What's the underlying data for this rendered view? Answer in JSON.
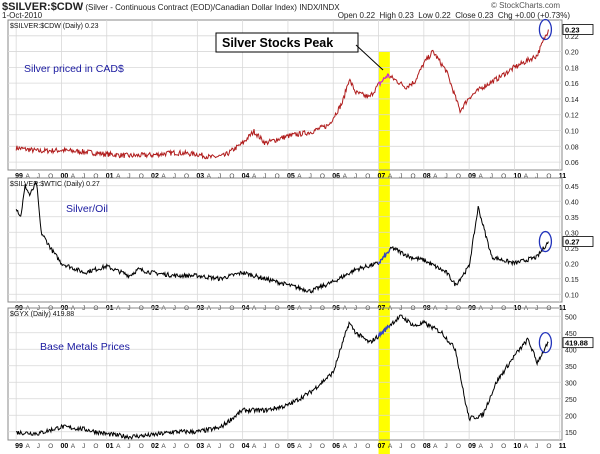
{
  "header": {
    "symbol": "$SILVER:$CDW",
    "description": "(Silver - Continuous Contract (EOD)/Canadian Dollar Index)  INDX/INDX",
    "date": "1-Oct-2010",
    "open_label": "Open",
    "open": "0.22",
    "high_label": "High",
    "high": "0.23",
    "low_label": "Low",
    "low": "0.22",
    "close_label": "Close",
    "close": "0.23",
    "chg_label": "Chg",
    "chg": "+0.00 (+0.73%)",
    "brand": "© StockCharts.com"
  },
  "colors": {
    "panel1_line": "#b01c1c",
    "panel_line": "#000000",
    "highlight_band": "#ffff00",
    "highlight_series": "#3344cc",
    "annotation_text": "#1a1aa0",
    "circle": "#2233bb",
    "grid": "#d8d8d8"
  },
  "chart_data": [
    {
      "type": "line",
      "title": "$SILVER:$CDW (Daily) 0.23",
      "annotation": "Silver priced in CAD$",
      "callout": "Silver Stocks Peak",
      "last_value": "0.23",
      "ylim": [
        0.05,
        0.24
      ],
      "yticks": [
        0.06,
        0.08,
        0.1,
        0.12,
        0.14,
        0.16,
        0.18,
        0.2,
        0.22
      ],
      "x": [
        1999.0,
        1999.5,
        2000.0,
        2000.5,
        2001.0,
        2001.5,
        2002.0,
        2002.5,
        2003.0,
        2003.3,
        2003.6,
        2004.0,
        2004.25,
        2004.5,
        2005.0,
        2005.5,
        2005.9,
        2006.2,
        2006.35,
        2006.5,
        2006.8,
        2007.0,
        2007.2,
        2007.4,
        2007.6,
        2007.8,
        2008.0,
        2008.2,
        2008.5,
        2008.8,
        2009.0,
        2009.3,
        2009.6,
        2010.0,
        2010.5,
        2010.75
      ],
      "values": [
        0.078,
        0.074,
        0.075,
        0.073,
        0.07,
        0.068,
        0.069,
        0.072,
        0.07,
        0.066,
        0.068,
        0.084,
        0.099,
        0.084,
        0.093,
        0.098,
        0.107,
        0.135,
        0.165,
        0.148,
        0.142,
        0.158,
        0.17,
        0.163,
        0.155,
        0.162,
        0.185,
        0.2,
        0.175,
        0.125,
        0.142,
        0.155,
        0.165,
        0.18,
        0.195,
        0.228
      ]
    },
    {
      "type": "line",
      "title": "$SILVER:$WTIC (Daily) 0.27",
      "annotation": "Silver/Oil",
      "last_value": "0.27",
      "ylim": [
        0.075,
        0.475
      ],
      "yticks": [
        0.1,
        0.15,
        0.2,
        0.25,
        0.3,
        0.35,
        0.4,
        0.45
      ],
      "x": [
        1999.0,
        1999.1,
        1999.2,
        1999.3,
        1999.45,
        1999.55,
        1999.8,
        2000.0,
        2000.5,
        2001.0,
        2001.5,
        2001.7,
        2002.0,
        2002.5,
        2003.0,
        2003.5,
        2004.0,
        2004.5,
        2005.0,
        2005.5,
        2006.0,
        2006.5,
        2007.0,
        2007.3,
        2007.7,
        2008.0,
        2008.5,
        2008.7,
        2009.0,
        2009.2,
        2009.5,
        2010.0,
        2010.5,
        2010.75
      ],
      "values": [
        0.38,
        0.35,
        0.45,
        0.42,
        0.46,
        0.3,
        0.24,
        0.2,
        0.17,
        0.19,
        0.16,
        0.18,
        0.17,
        0.16,
        0.16,
        0.15,
        0.17,
        0.15,
        0.13,
        0.11,
        0.14,
        0.18,
        0.2,
        0.25,
        0.22,
        0.21,
        0.17,
        0.13,
        0.19,
        0.38,
        0.22,
        0.2,
        0.22,
        0.27
      ]
    },
    {
      "type": "line",
      "title": "$GYX (Daily) 419.88",
      "annotation": "Base Metals Prices",
      "last_value": "419.88",
      "ylim": [
        125,
        525
      ],
      "yticks": [
        150,
        200,
        250,
        300,
        350,
        400,
        450,
        500
      ],
      "x": [
        1999.0,
        1999.5,
        2000.0,
        2000.5,
        2001.0,
        2001.5,
        2002.0,
        2002.5,
        2003.0,
        2003.5,
        2004.0,
        2004.5,
        2005.0,
        2005.5,
        2006.0,
        2006.35,
        2006.5,
        2006.8,
        2007.0,
        2007.3,
        2007.5,
        2007.8,
        2008.0,
        2008.4,
        2008.7,
        2008.9,
        2009.0,
        2009.3,
        2009.6,
        2010.0,
        2010.3,
        2010.5,
        2010.75
      ],
      "values": [
        148,
        145,
        165,
        158,
        143,
        135,
        140,
        150,
        150,
        162,
        215,
        215,
        230,
        270,
        330,
        480,
        450,
        420,
        440,
        480,
        500,
        470,
        480,
        450,
        400,
        250,
        190,
        200,
        300,
        380,
        430,
        360,
        420
      ]
    }
  ],
  "x_axis": {
    "years": [
      {
        "label": "99",
        "x": 1999.0
      },
      {
        "label": "00",
        "x": 2000.0
      },
      {
        "label": "01",
        "x": 2001.0
      },
      {
        "label": "02",
        "x": 2002.0
      },
      {
        "label": "03",
        "x": 2003.0
      },
      {
        "label": "04",
        "x": 2004.0
      },
      {
        "label": "05",
        "x": 2005.0
      },
      {
        "label": "06",
        "x": 2006.0
      },
      {
        "label": "07",
        "x": 2007.0
      },
      {
        "label": "08",
        "x": 2008.0
      },
      {
        "label": "09",
        "x": 2009.0
      },
      {
        "label": "10",
        "x": 2010.0
      },
      {
        "label": "11",
        "x": 2011.0
      }
    ],
    "months": [
      "A",
      "J",
      "O"
    ],
    "range": [
      1998.82,
      2011.05
    ]
  },
  "highlight": {
    "x_start": 2007.0,
    "x_end": 2007.25
  },
  "circles": [
    {
      "panel": 0,
      "x": 2010.75
    },
    {
      "panel": 1,
      "x": 2010.75
    },
    {
      "panel": 2,
      "x": 2010.75
    }
  ]
}
